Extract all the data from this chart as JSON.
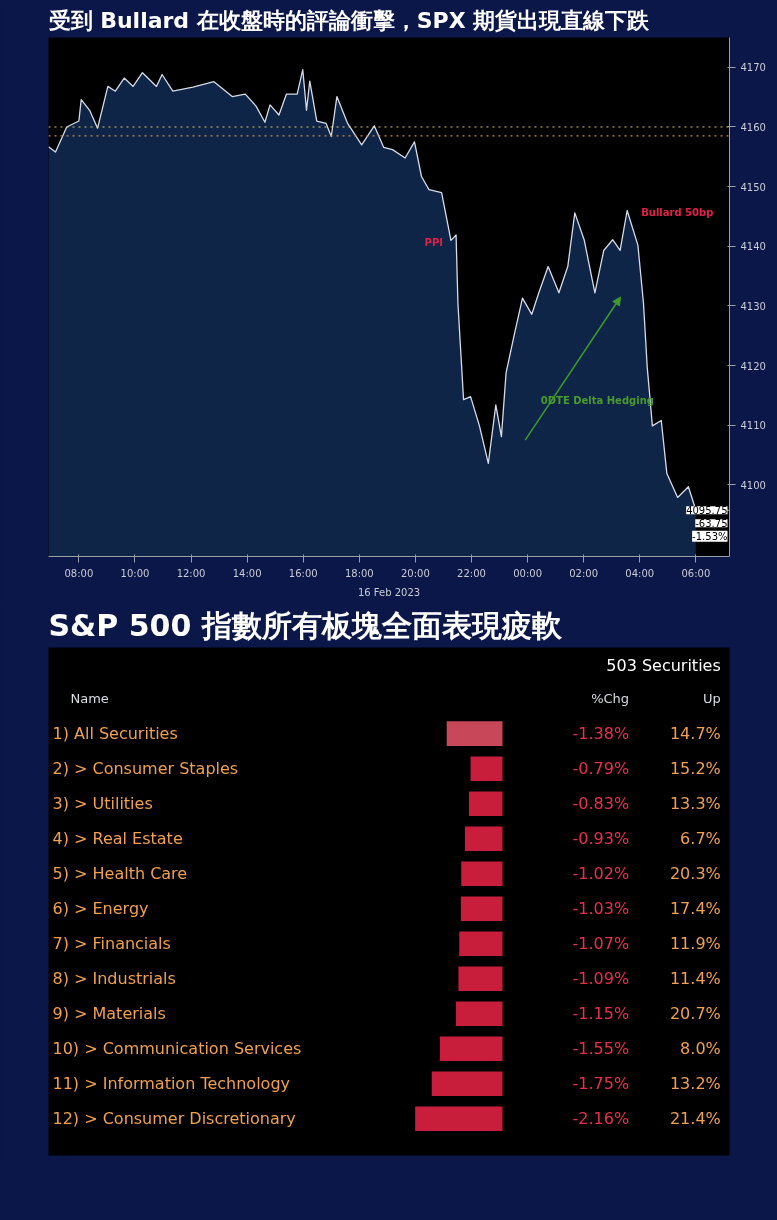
{
  "chart_data": [
    {
      "type": "area",
      "title": "受到 Bullard 在收盤時的評論衝擊，SPX 期貨出現直線下跌",
      "xlabel": "16 Feb 2023",
      "series": [
        {
          "color": "#0e2547",
          "x": [
            "2023-02-16T06:55",
            "2023-02-16T07:10",
            "2023-02-16T07:34",
            "2023-02-16T08:00",
            "2023-02-16T08:05",
            "2023-02-16T08:23",
            "2023-02-16T08:40",
            "2023-02-16T09:02",
            "2023-02-16T09:18",
            "2023-02-16T09:37",
            "2023-02-16T09:56",
            "2023-02-16T10:16",
            "2023-02-16T10:46",
            "2023-02-16T10:58",
            "2023-02-16T11:21",
            "2023-02-16T12:04",
            "2023-02-16T12:49",
            "2023-02-16T13:28",
            "2023-02-16T13:56",
            "2023-02-16T14:19",
            "2023-02-16T14:38",
            "2023-02-16T14:49",
            "2023-02-16T15:08",
            "2023-02-16T15:24",
            "2023-02-16T15:47",
            "2023-02-16T15:59",
            "2023-02-16T16:07",
            "2023-02-16T16:14",
            "2023-02-16T16:29",
            "2023-02-16T16:49",
            "2023-02-16T17:00",
            "2023-02-16T17:12",
            "2023-02-16T17:35",
            "2023-02-16T18:05",
            "2023-02-16T18:32",
            "2023-02-16T18:52",
            "2023-02-16T19:11",
            "2023-02-16T19:38",
            "2023-02-16T19:58",
            "2023-02-16T20:13",
            "2023-02-16T20:29",
            "2023-02-16T20:56",
            "2023-02-16T21:16",
            "2023-02-16T21:27",
            "2023-02-16T21:31",
            "2023-02-16T21:43",
            "2023-02-16T21:58",
            "2023-02-16T22:17",
            "2023-02-16T22:36",
            "2023-02-16T22:52",
            "2023-02-16T23:04",
            "2023-02-16T23:14",
            "2023-02-16T23:31",
            "2023-02-16T23:49",
            "2023-02-17T00:09",
            "2023-02-17T00:24",
            "2023-02-17T00:44",
            "2023-02-17T01:07",
            "2023-02-17T01:26",
            "2023-02-17T01:41",
            "2023-02-17T02:01",
            "2023-02-17T02:24",
            "2023-02-17T02:43",
            "2023-02-17T03:02",
            "2023-02-17T03:18",
            "2023-02-17T03:33",
            "2023-02-17T03:56",
            "2023-02-17T04:08",
            "2023-02-17T04:16",
            "2023-02-17T04:27",
            "2023-02-17T04:46",
            "2023-02-17T04:58",
            "2023-02-17T05:21",
            "2023-02-17T05:44",
            "2023-02-17T05:55",
            "2023-02-17T06:00"
          ],
          "values": [
            4156.7,
            4155.8,
            4160,
            4161,
            4164.6,
            4162.8,
            4159.8,
            4166.8,
            4166,
            4168.2,
            4166.8,
            4169.1,
            4166.8,
            4168.8,
            4166,
            4166.7,
            4167.6,
            4165.1,
            4165.5,
            4163.5,
            4160.8,
            4163.7,
            4162,
            4165.5,
            4165.5,
            4169.6,
            4162.8,
            4167.7,
            4161,
            4160.6,
            4158.4,
            4165.1,
            4160.6,
            4157,
            4160.2,
            4156.6,
            4156.2,
            4154.8,
            4157.5,
            4151.7,
            4149.5,
            4149,
            4141,
            4141.9,
            4130.4,
            4114.3,
            4114.8,
            4109.9,
            4103.6,
            4113.4,
            4108.1,
            4118.8,
            4125,
            4131.3,
            4128.6,
            4132.2,
            4136.6,
            4132.2,
            4136.6,
            4145.6,
            4141.1,
            4132.2,
            4139.3,
            4141.1,
            4139.3,
            4146,
            4140.2,
            4130.4,
            4119.7,
            4109.9,
            4110.8,
            4101.9,
            4097.9,
            4099.7,
            4097,
            4095.75
          ]
        }
      ],
      "xlim": [
        "2023-02-16T06:55",
        "2023-02-17T07:12"
      ],
      "ylim": [
        4088,
        4175
      ],
      "xticks": [
        {
          "value": "2023-02-16T08:00",
          "label": "08:00"
        },
        {
          "value": "2023-02-16T10:00",
          "label": "10:00"
        },
        {
          "value": "2023-02-16T12:00",
          "label": "12:00"
        },
        {
          "value": "2023-02-16T14:00",
          "label": "14:00"
        },
        {
          "value": "2023-02-16T16:00",
          "label": "16:00"
        },
        {
          "value": "2023-02-16T18:00",
          "label": "18:00"
        },
        {
          "value": "2023-02-16T20:00",
          "label": "20:00"
        },
        {
          "value": "2023-02-16T22:00",
          "label": "22:00"
        },
        {
          "value": "2023-02-17T00:00",
          "label": "00:00"
        },
        {
          "value": "2023-02-17T02:00",
          "label": "02:00"
        },
        {
          "value": "2023-02-17T04:00",
          "label": "04:00"
        },
        {
          "value": "2023-02-17T06:00",
          "label": "06:00"
        }
      ],
      "yticks": [
        4100,
        4110,
        4120,
        4130,
        4140,
        4150,
        4160,
        4170
      ],
      "line_style": "solid",
      "ref_lines": [
        {
          "axis": "y",
          "value": 4160,
          "color": "#d9c36a",
          "line_style": "dotted"
        },
        {
          "axis": "y",
          "value": 4158.5,
          "color": "#c8874a",
          "line_style": "dotted"
        },
        {
          "axis": "y",
          "value": 4095.75,
          "label": "4095.75",
          "color": "#b59a6a"
        }
      ],
      "annotations": [
        {
          "text": "PPI",
          "x": "2023-02-16T21:16",
          "y": 4141
        },
        {
          "text": "Bullard 50bp",
          "x": "2023-02-17T03:33",
          "y": 4146
        },
        "0DTE Delta Hedging",
        "-63.75",
        "-1.53%"
      ]
    },
    {
      "type": "bar",
      "orientation": "horizontal",
      "title": "S&P 500 指數所有板塊全面表現疲軟",
      "ylabel": "Name",
      "categories": [
        "1) All Securities",
        "2) > Consumer Staples",
        "3) > Utilities",
        "4) > Real Estate",
        "5) > Health Care",
        "6) > Energy",
        "7) > Financials",
        "8) > Industrials",
        "9) > Materials",
        "10) > Communication Services",
        "11) > Information Technology",
        "12) > Consumer Discretionary"
      ],
      "values": [
        -1.38,
        -0.79,
        -0.83,
        -0.93,
        -1.02,
        -1.03,
        -1.07,
        -1.09,
        -1.15,
        -1.55,
        -1.75,
        -2.16
      ],
      "colors": [
        "#c8485a",
        "#c81e3c",
        "#c81e3c",
        "#c81e3c",
        "#c81e3c",
        "#c81e3c",
        "#c81e3c",
        "#c81e3c",
        "#c81e3c",
        "#c81e3c",
        "#c81e3c",
        "#c81e3c"
      ],
      "value_labels": [
        "-1.38%",
        "-0.79%",
        "-0.83%",
        "-0.93%",
        "-1.02%",
        "-1.03%",
        "-1.07%",
        "-1.09%",
        "-1.15%",
        "-1.55%",
        "-1.75%",
        "-2.16%"
      ],
      "annotations": [
        "503 Securities",
        "%Chg",
        "Up",
        "14.7%",
        "15.2%",
        "13.3%",
        "6.7%",
        "20.3%",
        "17.4%",
        "11.9%",
        "11.4%",
        "20.7%",
        "8.0%",
        "13.2%",
        "21.4%"
      ],
      "tick_labels": "y"
    }
  ]
}
